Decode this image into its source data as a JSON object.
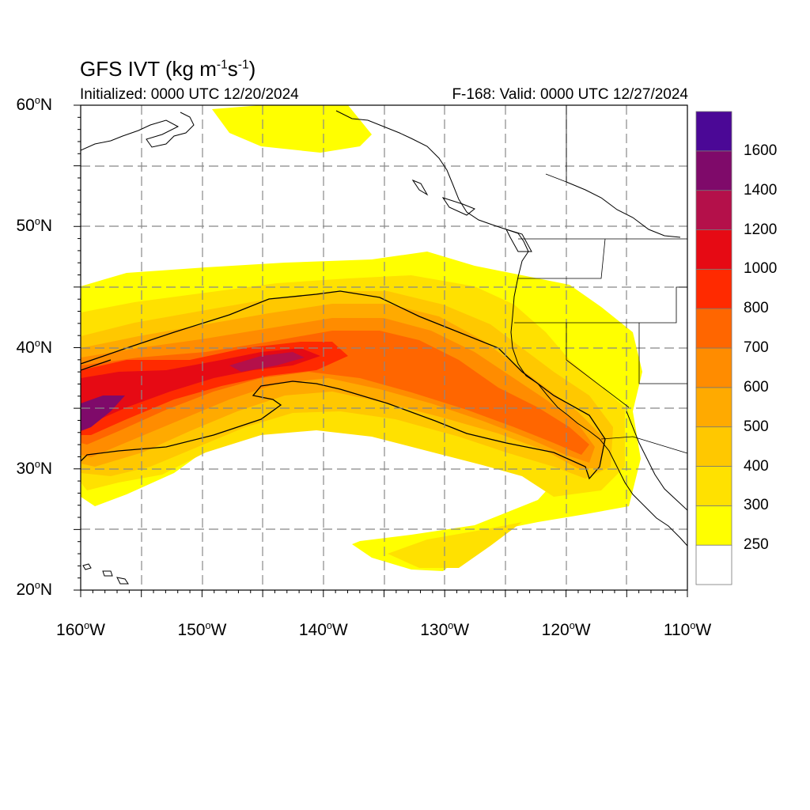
{
  "title": {
    "prefix": "GFS IVT (kg m",
    "exp1": "-1",
    "middle": "s",
    "exp2": "-1",
    "suffix": ")"
  },
  "initialized": "Initialized: 0000 UTC 12/20/2024",
  "valid": "F-168: Valid: 0000 UTC 12/27/2024",
  "lat_labels": [
    {
      "value": 60,
      "text": "60",
      "deg": "o",
      "hem": "N"
    },
    {
      "value": 50,
      "text": "50",
      "deg": "o",
      "hem": "N"
    },
    {
      "value": 40,
      "text": "40",
      "deg": "o",
      "hem": "N"
    },
    {
      "value": 30,
      "text": "30",
      "deg": "o",
      "hem": "N"
    },
    {
      "value": 20,
      "text": "20",
      "deg": "o",
      "hem": "N"
    }
  ],
  "lon_labels": [
    {
      "value": -160,
      "text": "160",
      "deg": "o",
      "hem": "W"
    },
    {
      "value": -150,
      "text": "150",
      "deg": "o",
      "hem": "W"
    },
    {
      "value": -140,
      "text": "140",
      "deg": "o",
      "hem": "W"
    },
    {
      "value": -130,
      "text": "130",
      "deg": "o",
      "hem": "W"
    },
    {
      "value": -120,
      "text": "120",
      "deg": "o",
      "hem": "W"
    },
    {
      "value": -110,
      "text": "110",
      "deg": "o",
      "hem": "W"
    }
  ],
  "map": {
    "lon_range": [
      -160,
      -110
    ],
    "lat_range": [
      20,
      60
    ],
    "grid_lons": [
      -155,
      -150,
      -145,
      -140,
      -135,
      -130,
      -125,
      -120,
      -115
    ],
    "grid_lats": [
      25,
      30,
      35,
      40,
      45,
      50,
      55
    ],
    "variable": "IVT"
  },
  "colorbar": {
    "levels": [
      "250",
      "300",
      "400",
      "500",
      "600",
      "700",
      "800",
      "1000",
      "1200",
      "1400",
      "1600"
    ],
    "colors": [
      "#ffffff",
      "#ffff00",
      "#ffe100",
      "#ffc800",
      "#ffaa00",
      "#ff8c00",
      "#ff6600",
      "#ff2a00",
      "#e60a14",
      "#b4104a",
      "#7f0a6a",
      "#4b0896"
    ]
  },
  "colors": {
    "c250": "#ffff00",
    "c300": "#ffe100",
    "c400": "#ffc800",
    "c500": "#ffaa00",
    "c600": "#ff8c00",
    "c700": "#ff6600",
    "c800": "#ff2a00",
    "c1000": "#e60a14",
    "c1200": "#b4104a",
    "c1400": "#7f0a6a"
  }
}
